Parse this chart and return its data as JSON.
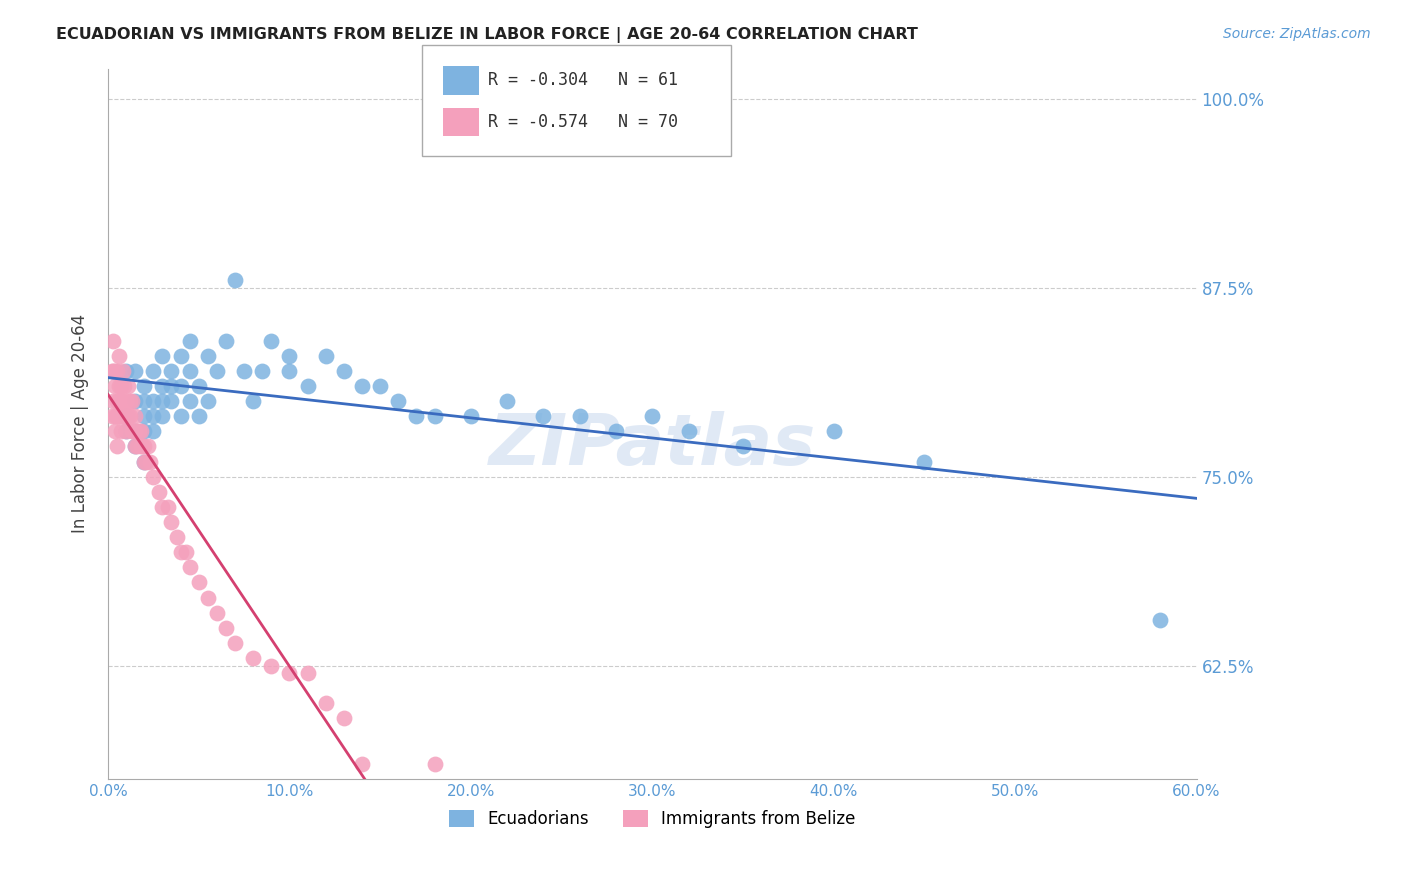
{
  "title": "ECUADORIAN VS IMMIGRANTS FROM BELIZE IN LABOR FORCE | AGE 20-64 CORRELATION CHART",
  "source": "Source: ZipAtlas.com",
  "xlabel_ticks": [
    0.0,
    0.1,
    0.2,
    0.3,
    0.4,
    0.5,
    0.6
  ],
  "xlabel_labels": [
    "0.0%",
    "10.0%",
    "20.0%",
    "30.0%",
    "40.0%",
    "50.0%",
    "60.0%"
  ],
  "ylabel_ticks": [
    0.625,
    0.75,
    0.875,
    1.0
  ],
  "ylabel_labels": [
    "62.5%",
    "75.0%",
    "87.5%",
    "100.0%"
  ],
  "xmin": 0.0,
  "xmax": 0.6,
  "ymin": 0.55,
  "ymax": 1.02,
  "blue_R": -0.304,
  "blue_N": 61,
  "pink_R": -0.574,
  "pink_N": 70,
  "blue_color": "#7eb3e0",
  "pink_color": "#f4a0bc",
  "blue_line_color": "#3a6bbf",
  "pink_line_color": "#d44070",
  "watermark": "ZIPatlas",
  "legend_label_blue": "Ecuadorians",
  "legend_label_pink": "Immigrants from Belize",
  "blue_scatter_x": [
    0.01,
    0.01,
    0.01,
    0.015,
    0.015,
    0.015,
    0.015,
    0.02,
    0.02,
    0.02,
    0.02,
    0.02,
    0.025,
    0.025,
    0.025,
    0.025,
    0.03,
    0.03,
    0.03,
    0.03,
    0.035,
    0.035,
    0.035,
    0.04,
    0.04,
    0.04,
    0.045,
    0.045,
    0.045,
    0.05,
    0.05,
    0.055,
    0.055,
    0.06,
    0.065,
    0.07,
    0.075,
    0.08,
    0.085,
    0.09,
    0.1,
    0.1,
    0.11,
    0.12,
    0.13,
    0.14,
    0.15,
    0.16,
    0.17,
    0.18,
    0.2,
    0.22,
    0.24,
    0.26,
    0.28,
    0.3,
    0.32,
    0.35,
    0.4,
    0.45,
    0.58
  ],
  "blue_scatter_y": [
    0.78,
    0.79,
    0.82,
    0.77,
    0.78,
    0.8,
    0.82,
    0.76,
    0.78,
    0.79,
    0.8,
    0.81,
    0.78,
    0.79,
    0.8,
    0.82,
    0.79,
    0.8,
    0.81,
    0.83,
    0.8,
    0.81,
    0.82,
    0.79,
    0.81,
    0.83,
    0.8,
    0.82,
    0.84,
    0.79,
    0.81,
    0.8,
    0.83,
    0.82,
    0.84,
    0.88,
    0.82,
    0.8,
    0.82,
    0.84,
    0.82,
    0.83,
    0.81,
    0.83,
    0.82,
    0.81,
    0.81,
    0.8,
    0.79,
    0.79,
    0.79,
    0.8,
    0.79,
    0.79,
    0.78,
    0.79,
    0.78,
    0.77,
    0.78,
    0.76,
    0.655
  ],
  "pink_scatter_x": [
    0.002,
    0.002,
    0.003,
    0.003,
    0.003,
    0.004,
    0.004,
    0.004,
    0.004,
    0.005,
    0.005,
    0.005,
    0.005,
    0.006,
    0.006,
    0.006,
    0.006,
    0.007,
    0.007,
    0.007,
    0.008,
    0.008,
    0.008,
    0.009,
    0.009,
    0.01,
    0.01,
    0.01,
    0.011,
    0.011,
    0.012,
    0.012,
    0.013,
    0.013,
    0.014,
    0.015,
    0.015,
    0.015,
    0.016,
    0.017,
    0.018,
    0.018,
    0.019,
    0.02,
    0.02,
    0.021,
    0.022,
    0.023,
    0.025,
    0.028,
    0.03,
    0.033,
    0.035,
    0.038,
    0.04,
    0.043,
    0.045,
    0.05,
    0.055,
    0.06,
    0.065,
    0.07,
    0.08,
    0.09,
    0.1,
    0.11,
    0.12,
    0.13,
    0.14,
    0.18
  ],
  "pink_scatter_y": [
    0.79,
    0.82,
    0.8,
    0.82,
    0.84,
    0.78,
    0.79,
    0.81,
    0.82,
    0.77,
    0.79,
    0.8,
    0.82,
    0.79,
    0.8,
    0.81,
    0.83,
    0.78,
    0.8,
    0.81,
    0.79,
    0.8,
    0.82,
    0.79,
    0.81,
    0.78,
    0.79,
    0.8,
    0.79,
    0.81,
    0.79,
    0.8,
    0.78,
    0.8,
    0.78,
    0.77,
    0.78,
    0.79,
    0.77,
    0.78,
    0.77,
    0.78,
    0.77,
    0.76,
    0.77,
    0.76,
    0.77,
    0.76,
    0.75,
    0.74,
    0.73,
    0.73,
    0.72,
    0.71,
    0.7,
    0.7,
    0.69,
    0.68,
    0.67,
    0.66,
    0.65,
    0.64,
    0.63,
    0.625,
    0.62,
    0.62,
    0.6,
    0.59,
    0.56,
    0.56
  ]
}
